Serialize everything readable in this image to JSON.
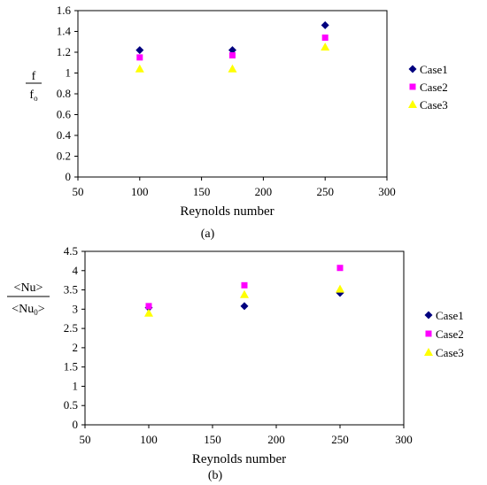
{
  "chart_data": [
    {
      "type": "scatter",
      "panel_label": "(a)",
      "xlabel": "Reynolds number",
      "ylabel_num": "f",
      "ylabel_den": "f",
      "ylabel_den_sub": "o",
      "xlim": [
        50,
        300
      ],
      "ylim": [
        0,
        1.6
      ],
      "xticks": [
        "50",
        "100",
        "150",
        "200",
        "250",
        "300"
      ],
      "yticks": [
        "0",
        "0.2",
        "0.4",
        "0.6",
        "0.8",
        "1",
        "1.2",
        "1.4",
        "1.6"
      ],
      "grid": false,
      "legend": "right",
      "series": [
        {
          "name": "Case1",
          "marker": "diamond",
          "color": "#00007f",
          "x": [
            100,
            175,
            250
          ],
          "y": [
            1.22,
            1.22,
            1.46
          ]
        },
        {
          "name": "Case2",
          "marker": "square",
          "color": "#ff00ff",
          "x": [
            100,
            175,
            250
          ],
          "y": [
            1.15,
            1.17,
            1.34
          ]
        },
        {
          "name": "Case3",
          "marker": "triangle",
          "color": "#ffff00",
          "x": [
            100,
            175,
            250
          ],
          "y": [
            1.04,
            1.04,
            1.25
          ]
        }
      ]
    },
    {
      "type": "scatter",
      "panel_label": "(b)",
      "xlabel": "Reynolds number",
      "ylabel_num": "<Nu>",
      "ylabel_den": "<Nu",
      "ylabel_den_sub": "0",
      "ylabel_den_close": ">",
      "xlim": [
        50,
        300
      ],
      "ylim": [
        0,
        4.5
      ],
      "xticks": [
        "50",
        "100",
        "150",
        "200",
        "250",
        "300"
      ],
      "yticks": [
        "0",
        "0.5",
        "1",
        "1.5",
        "2",
        "2.5",
        "3",
        "3.5",
        "4",
        "4.5"
      ],
      "grid": false,
      "legend": "right",
      "series": [
        {
          "name": "Case1",
          "marker": "diamond",
          "color": "#00007f",
          "x": [
            100,
            175,
            250
          ],
          "y": [
            3.04,
            3.08,
            3.42
          ]
        },
        {
          "name": "Case2",
          "marker": "square",
          "color": "#ff00ff",
          "x": [
            100,
            175,
            250
          ],
          "y": [
            3.08,
            3.62,
            4.07
          ]
        },
        {
          "name": "Case3",
          "marker": "triangle",
          "color": "#ffff00",
          "x": [
            100,
            175,
            250
          ],
          "y": [
            2.9,
            3.38,
            3.52
          ]
        }
      ]
    }
  ]
}
